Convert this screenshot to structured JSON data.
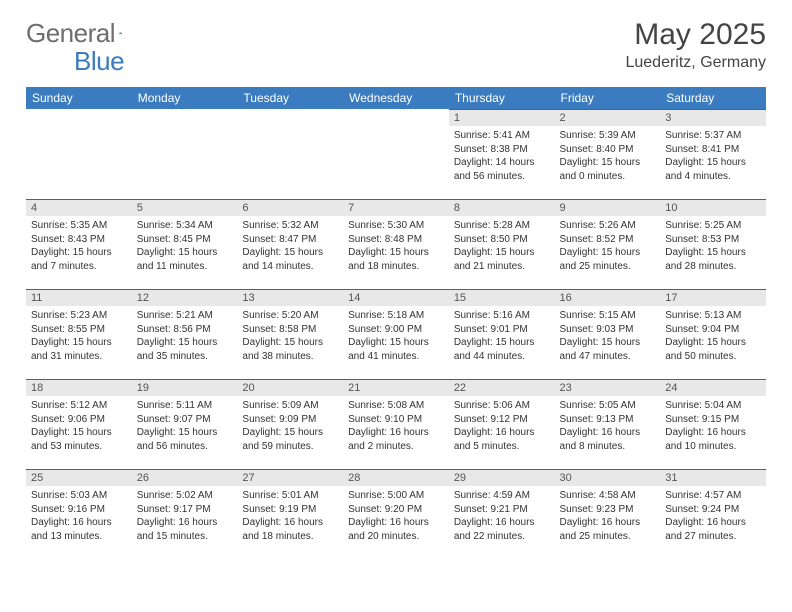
{
  "brand": {
    "name1": "General",
    "name2": "Blue"
  },
  "title": "May 2025",
  "location": "Luederitz, Germany",
  "header_bg": "#3b7bbf",
  "daynum_bg": "#e8e8e8",
  "weekdays": [
    "Sunday",
    "Monday",
    "Tuesday",
    "Wednesday",
    "Thursday",
    "Friday",
    "Saturday"
  ],
  "weeks": [
    [
      {
        "empty": true
      },
      {
        "empty": true
      },
      {
        "empty": true
      },
      {
        "empty": true
      },
      {
        "day": "1",
        "sunrise": "Sunrise: 5:41 AM",
        "sunset": "Sunset: 8:38 PM",
        "daylight": "Daylight: 14 hours and 56 minutes."
      },
      {
        "day": "2",
        "sunrise": "Sunrise: 5:39 AM",
        "sunset": "Sunset: 8:40 PM",
        "daylight": "Daylight: 15 hours and 0 minutes."
      },
      {
        "day": "3",
        "sunrise": "Sunrise: 5:37 AM",
        "sunset": "Sunset: 8:41 PM",
        "daylight": "Daylight: 15 hours and 4 minutes."
      }
    ],
    [
      {
        "day": "4",
        "sunrise": "Sunrise: 5:35 AM",
        "sunset": "Sunset: 8:43 PM",
        "daylight": "Daylight: 15 hours and 7 minutes."
      },
      {
        "day": "5",
        "sunrise": "Sunrise: 5:34 AM",
        "sunset": "Sunset: 8:45 PM",
        "daylight": "Daylight: 15 hours and 11 minutes."
      },
      {
        "day": "6",
        "sunrise": "Sunrise: 5:32 AM",
        "sunset": "Sunset: 8:47 PM",
        "daylight": "Daylight: 15 hours and 14 minutes."
      },
      {
        "day": "7",
        "sunrise": "Sunrise: 5:30 AM",
        "sunset": "Sunset: 8:48 PM",
        "daylight": "Daylight: 15 hours and 18 minutes."
      },
      {
        "day": "8",
        "sunrise": "Sunrise: 5:28 AM",
        "sunset": "Sunset: 8:50 PM",
        "daylight": "Daylight: 15 hours and 21 minutes."
      },
      {
        "day": "9",
        "sunrise": "Sunrise: 5:26 AM",
        "sunset": "Sunset: 8:52 PM",
        "daylight": "Daylight: 15 hours and 25 minutes."
      },
      {
        "day": "10",
        "sunrise": "Sunrise: 5:25 AM",
        "sunset": "Sunset: 8:53 PM",
        "daylight": "Daylight: 15 hours and 28 minutes."
      }
    ],
    [
      {
        "day": "11",
        "sunrise": "Sunrise: 5:23 AM",
        "sunset": "Sunset: 8:55 PM",
        "daylight": "Daylight: 15 hours and 31 minutes."
      },
      {
        "day": "12",
        "sunrise": "Sunrise: 5:21 AM",
        "sunset": "Sunset: 8:56 PM",
        "daylight": "Daylight: 15 hours and 35 minutes."
      },
      {
        "day": "13",
        "sunrise": "Sunrise: 5:20 AM",
        "sunset": "Sunset: 8:58 PM",
        "daylight": "Daylight: 15 hours and 38 minutes."
      },
      {
        "day": "14",
        "sunrise": "Sunrise: 5:18 AM",
        "sunset": "Sunset: 9:00 PM",
        "daylight": "Daylight: 15 hours and 41 minutes."
      },
      {
        "day": "15",
        "sunrise": "Sunrise: 5:16 AM",
        "sunset": "Sunset: 9:01 PM",
        "daylight": "Daylight: 15 hours and 44 minutes."
      },
      {
        "day": "16",
        "sunrise": "Sunrise: 5:15 AM",
        "sunset": "Sunset: 9:03 PM",
        "daylight": "Daylight: 15 hours and 47 minutes."
      },
      {
        "day": "17",
        "sunrise": "Sunrise: 5:13 AM",
        "sunset": "Sunset: 9:04 PM",
        "daylight": "Daylight: 15 hours and 50 minutes."
      }
    ],
    [
      {
        "day": "18",
        "sunrise": "Sunrise: 5:12 AM",
        "sunset": "Sunset: 9:06 PM",
        "daylight": "Daylight: 15 hours and 53 minutes."
      },
      {
        "day": "19",
        "sunrise": "Sunrise: 5:11 AM",
        "sunset": "Sunset: 9:07 PM",
        "daylight": "Daylight: 15 hours and 56 minutes."
      },
      {
        "day": "20",
        "sunrise": "Sunrise: 5:09 AM",
        "sunset": "Sunset: 9:09 PM",
        "daylight": "Daylight: 15 hours and 59 minutes."
      },
      {
        "day": "21",
        "sunrise": "Sunrise: 5:08 AM",
        "sunset": "Sunset: 9:10 PM",
        "daylight": "Daylight: 16 hours and 2 minutes."
      },
      {
        "day": "22",
        "sunrise": "Sunrise: 5:06 AM",
        "sunset": "Sunset: 9:12 PM",
        "daylight": "Daylight: 16 hours and 5 minutes."
      },
      {
        "day": "23",
        "sunrise": "Sunrise: 5:05 AM",
        "sunset": "Sunset: 9:13 PM",
        "daylight": "Daylight: 16 hours and 8 minutes."
      },
      {
        "day": "24",
        "sunrise": "Sunrise: 5:04 AM",
        "sunset": "Sunset: 9:15 PM",
        "daylight": "Daylight: 16 hours and 10 minutes."
      }
    ],
    [
      {
        "day": "25",
        "sunrise": "Sunrise: 5:03 AM",
        "sunset": "Sunset: 9:16 PM",
        "daylight": "Daylight: 16 hours and 13 minutes."
      },
      {
        "day": "26",
        "sunrise": "Sunrise: 5:02 AM",
        "sunset": "Sunset: 9:17 PM",
        "daylight": "Daylight: 16 hours and 15 minutes."
      },
      {
        "day": "27",
        "sunrise": "Sunrise: 5:01 AM",
        "sunset": "Sunset: 9:19 PM",
        "daylight": "Daylight: 16 hours and 18 minutes."
      },
      {
        "day": "28",
        "sunrise": "Sunrise: 5:00 AM",
        "sunset": "Sunset: 9:20 PM",
        "daylight": "Daylight: 16 hours and 20 minutes."
      },
      {
        "day": "29",
        "sunrise": "Sunrise: 4:59 AM",
        "sunset": "Sunset: 9:21 PM",
        "daylight": "Daylight: 16 hours and 22 minutes."
      },
      {
        "day": "30",
        "sunrise": "Sunrise: 4:58 AM",
        "sunset": "Sunset: 9:23 PM",
        "daylight": "Daylight: 16 hours and 25 minutes."
      },
      {
        "day": "31",
        "sunrise": "Sunrise: 4:57 AM",
        "sunset": "Sunset: 9:24 PM",
        "daylight": "Daylight: 16 hours and 27 minutes."
      }
    ]
  ]
}
